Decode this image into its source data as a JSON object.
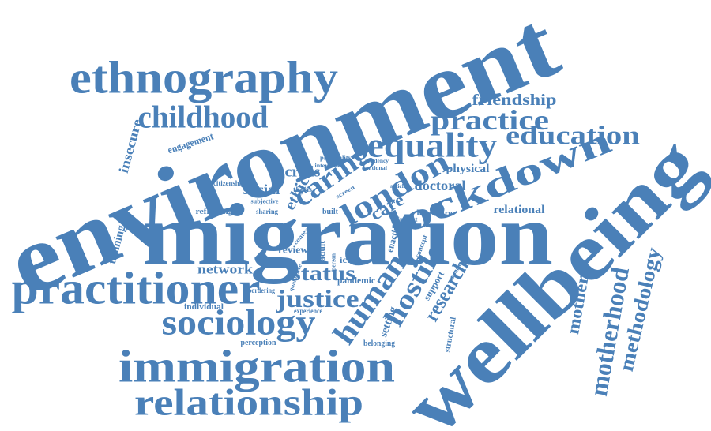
{
  "words": [
    "environment",
    "migration",
    "wellbeing",
    "ethnography",
    "childhood",
    "practice",
    "friendship",
    "education",
    "equality",
    "lockdown",
    "london",
    "caring",
    "ethic",
    "crisis",
    "social",
    "care",
    "doctoral",
    "physical",
    "relational",
    "practitioner",
    "network",
    "justice",
    "status",
    "sociology",
    "immigration",
    "relationship",
    "human",
    "hostile",
    "research",
    "mother",
    "motherhood",
    "methodology",
    "insecure",
    "engagement",
    "training",
    "reflecting",
    "citizenship",
    "subjective",
    "sharing",
    "thesis",
    "built",
    "review",
    "adult",
    "icts",
    "individual",
    "bordering",
    "pandemic",
    "experience",
    "perception",
    "belonging",
    "setting",
    "support",
    "structural",
    "literature",
    "enacting",
    "impact",
    "concept",
    "physicality",
    "interaction",
    "residency",
    "national",
    "screen",
    "article",
    "response",
    "qualitative",
    "context",
    "person"
  ]
}
